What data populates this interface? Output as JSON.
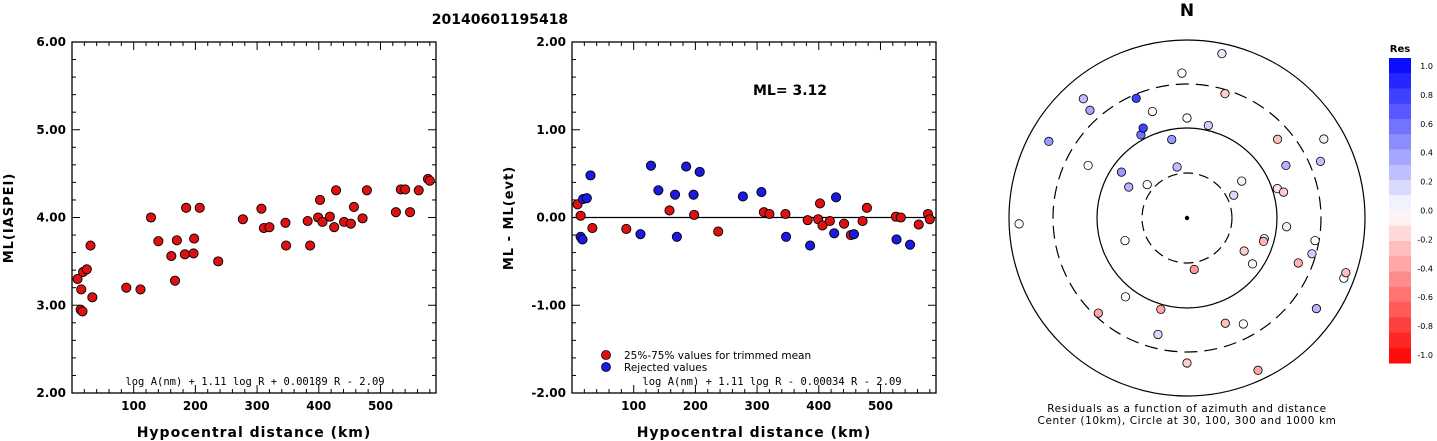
{
  "figure_title": "20140601195418",
  "north_label": "N",
  "colors": {
    "red": "#dd1111",
    "blue": "#1a1ae0",
    "frame": "#000000"
  },
  "chart_data": [
    {
      "type": "scatter",
      "id": "ml_vs_distance",
      "xlabel": "Hypocentral distance (km)",
      "ylabel": "ML(IASPEI)",
      "xlim": [
        0,
        590
      ],
      "ylim": [
        2.0,
        6.0
      ],
      "x_ticks": [
        100,
        200,
        300,
        400,
        500
      ],
      "y_ticks": [
        "2.00",
        "3.00",
        "4.00",
        "5.00",
        "6.00"
      ],
      "formula": "log A(nm) + 1.11 log R + 0.00189 R - 2.09",
      "series": [
        {
          "color": "red",
          "points": [
            [
              9,
              3.3
            ],
            [
              14,
              2.95
            ],
            [
              15,
              3.18
            ],
            [
              17,
              2.93
            ],
            [
              18,
              3.38
            ],
            [
              24,
              3.41
            ],
            [
              30,
              3.68
            ],
            [
              33,
              3.09
            ],
            [
              88,
              3.2
            ],
            [
              111,
              3.18
            ],
            [
              128,
              4.0
            ],
            [
              140,
              3.73
            ],
            [
              161,
              3.56
            ],
            [
              167,
              3.28
            ],
            [
              170,
              3.74
            ],
            [
              183,
              3.58
            ],
            [
              185,
              4.11
            ],
            [
              197,
              3.59
            ],
            [
              198,
              3.76
            ],
            [
              207,
              4.11
            ],
            [
              237,
              3.5
            ],
            [
              277,
              3.98
            ],
            [
              307,
              4.1
            ],
            [
              311,
              3.88
            ],
            [
              320,
              3.89
            ],
            [
              346,
              3.94
            ],
            [
              347,
              3.68
            ],
            [
              382,
              3.96
            ],
            [
              386,
              3.68
            ],
            [
              399,
              4.0
            ],
            [
              402,
              4.2
            ],
            [
              406,
              3.95
            ],
            [
              418,
              4.01
            ],
            [
              425,
              3.89
            ],
            [
              428,
              4.31
            ],
            [
              441,
              3.95
            ],
            [
              452,
              3.93
            ],
            [
              457,
              4.12
            ],
            [
              471,
              3.99
            ],
            [
              478,
              4.31
            ],
            [
              525,
              4.06
            ],
            [
              533,
              4.32
            ],
            [
              540,
              4.32
            ],
            [
              548,
              4.06
            ],
            [
              562,
              4.31
            ],
            [
              577,
              4.44
            ],
            [
              580,
              4.42
            ]
          ]
        }
      ]
    },
    {
      "type": "scatter",
      "id": "residual_vs_distance",
      "xlabel": "Hypocentral distance (km)",
      "ylabel": "ML - ML(evt)",
      "xlim": [
        0,
        590
      ],
      "ylim": [
        -2.0,
        2.0
      ],
      "x_ticks": [
        100,
        200,
        300,
        400,
        500
      ],
      "y_ticks": [
        "-2.00",
        "-1.00",
        "0.00",
        "1.00",
        "2.00"
      ],
      "ml_label": "ML= 3.12",
      "formula": "log A(nm) + 1.11 log R - 0.00034 R - 2.09",
      "legend": [
        {
          "color": "red",
          "label": "25%-75% values for trimmed mean"
        },
        {
          "color": "blue",
          "label": "Rejected values"
        }
      ],
      "series": [
        {
          "color": "red",
          "points": [
            [
              9,
              0.15
            ],
            [
              14,
              0.02
            ],
            [
              33,
              -0.12
            ],
            [
              88,
              -0.13
            ],
            [
              158,
              0.08
            ],
            [
              198,
              0.03
            ],
            [
              237,
              -0.16
            ],
            [
              311,
              0.06
            ],
            [
              320,
              0.04
            ],
            [
              346,
              0.04
            ],
            [
              382,
              -0.03
            ],
            [
              399,
              -0.02
            ],
            [
              402,
              0.16
            ],
            [
              406,
              -0.09
            ],
            [
              418,
              -0.04
            ],
            [
              441,
              -0.07
            ],
            [
              452,
              -0.2
            ],
            [
              471,
              -0.04
            ],
            [
              478,
              0.11
            ],
            [
              525,
              0.01
            ],
            [
              533,
              0.0
            ],
            [
              562,
              -0.08
            ],
            [
              577,
              0.04
            ],
            [
              580,
              -0.02
            ]
          ]
        },
        {
          "color": "blue",
          "points": [
            [
              14,
              -0.22
            ],
            [
              17,
              -0.25
            ],
            [
              18,
              0.21
            ],
            [
              24,
              0.22
            ],
            [
              30,
              0.48
            ],
            [
              111,
              -0.19
            ],
            [
              128,
              0.59
            ],
            [
              140,
              0.31
            ],
            [
              167,
              0.26
            ],
            [
              170,
              -0.22
            ],
            [
              185,
              0.58
            ],
            [
              197,
              0.26
            ],
            [
              207,
              0.52
            ],
            [
              277,
              0.24
            ],
            [
              307,
              0.29
            ],
            [
              347,
              -0.22
            ],
            [
              386,
              -0.32
            ],
            [
              425,
              -0.18
            ],
            [
              428,
              0.23
            ],
            [
              457,
              -0.19
            ],
            [
              526,
              -0.25
            ],
            [
              548,
              -0.31
            ]
          ]
        }
      ]
    },
    {
      "type": "scatter",
      "id": "azimuth_residual_map",
      "caption_line1": "Residuals as a function of azimuth and distance",
      "caption_line2": "Center (10km), Circle at 30, 100, 300 and 1000 km",
      "colorbar_title": "Res",
      "colorbar_labels": [
        "1.0",
        "0.8",
        "0.6",
        "0.4",
        "0.2",
        "0.0",
        "-0.2",
        "-0.4",
        "-0.6",
        "-0.8",
        "-1.0"
      ],
      "stations": [
        [
          0,
          0.0
        ],
        [
          17,
          -0.2
        ],
        [
          105,
          0.05
        ],
        [
          111,
          0.0
        ],
        [
          152,
          0.0
        ],
        [
          250,
          0.0
        ],
        [
          319,
          0.25
        ],
        [
          342,
          -0.05
        ],
        [
          349,
          0.25
        ],
        [
          358,
          0.0
        ],
        [
          13,
          0.2
        ],
        [
          95,
          0.05
        ],
        [
          106,
          0.2
        ],
        [
          125,
          -0.05
        ],
        [
          155,
          -0.35
        ],
        [
          194,
          0.15
        ],
        [
          298,
          0.3
        ],
        [
          299,
          0.4
        ],
        [
          298,
          0.0
        ],
        [
          310,
          0.0
        ],
        [
          318,
          0.35
        ],
        [
          331,
          0.55
        ],
        [
          334,
          0.75
        ],
        [
          337,
          0.75
        ],
        [
          349,
          0.4
        ],
        [
          12,
          0.1
        ],
        [
          49,
          -0.25
        ],
        [
          56,
          -0.05
        ],
        [
          60,
          0.05
        ],
        [
          62,
          0.3
        ],
        [
          64,
          0.15
        ],
        [
          67,
          0.25
        ],
        [
          72,
          -0.1
        ],
        [
          75,
          -0.2
        ],
        [
          100,
          0.0
        ],
        [
          107,
          -0.3
        ],
        [
          109,
          -0.25
        ],
        [
          112,
          -0.3
        ],
        [
          120,
          -0.2
        ],
        [
          125,
          0.3
        ],
        [
          160,
          -0.25
        ],
        [
          172,
          -0.4
        ],
        [
          180,
          -0.2
        ],
        [
          196,
          -0.35
        ],
        [
          218,
          0.0
        ],
        [
          223,
          -0.35
        ],
        [
          305,
          0.4
        ],
        [
          268,
          0.0
        ]
      ]
    }
  ]
}
